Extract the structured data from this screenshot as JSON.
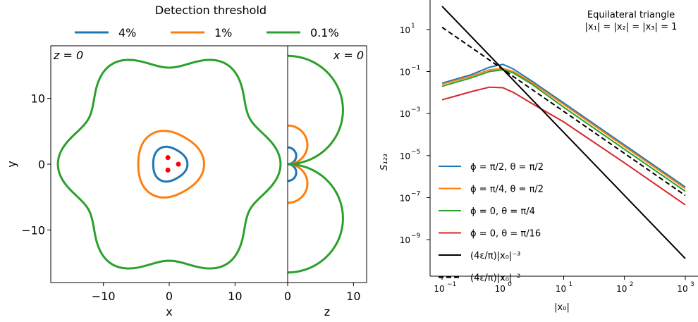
{
  "legend": {
    "title": "Detection threshold",
    "entries": [
      {
        "label": "4%",
        "color": "#1f77b4"
      },
      {
        "label": "1%",
        "color": "#ff7f0e"
      },
      {
        "label": "0.1%",
        "color": "#2ca02c"
      }
    ]
  },
  "chart_data": [
    {
      "type": "line",
      "panel": "z=0 slice",
      "title": "",
      "corner_label": "z = 0",
      "xlabel": "x",
      "ylabel": "y",
      "xlim": [
        -18,
        18
      ],
      "ylim": [
        -18,
        18
      ],
      "xticks": [
        {
          "v": -10,
          "label": "−10"
        },
        {
          "v": 0,
          "label": "0"
        },
        {
          "v": 10,
          "label": "10"
        }
      ],
      "yticks": [
        {
          "v": -10,
          "label": "−10"
        },
        {
          "v": 0,
          "label": "0"
        },
        {
          "v": 10,
          "label": "10"
        }
      ],
      "series": [
        {
          "name": "4%",
          "color": "#1f77b4",
          "base_radius": 2.6,
          "lobe_amplitude": 0.55,
          "lobes": 3
        },
        {
          "name": "1%",
          "color": "#ff7f0e",
          "base_radius": 5.0,
          "lobe_amplitude": 0.5,
          "lobes": 3
        },
        {
          "name": "0.1%",
          "color": "#2ca02c",
          "base_radius": 15.8,
          "lobe_amplitude": 0.8,
          "lobes": 6
        }
      ],
      "points": [
        {
          "x": 1.4,
          "y": 0.0
        },
        {
          "x": -0.2,
          "y": 1.0
        },
        {
          "x": -0.2,
          "y": -0.9
        }
      ],
      "point_color": "#ff0000"
    },
    {
      "type": "line",
      "panel": "x=0 slice",
      "corner_label": "x = 0",
      "xlabel": "z",
      "xlim": [
        0,
        12
      ],
      "ylim": [
        -18,
        18
      ],
      "xticks": [
        {
          "v": 0,
          "label": "0"
        },
        {
          "v": 10,
          "label": "10"
        }
      ],
      "series": [
        {
          "name": "4%",
          "color": "#1f77b4",
          "lobe_radius": 1.3
        },
        {
          "name": "1%",
          "color": "#ff7f0e",
          "lobe_radius": 3.0
        },
        {
          "name": "0.1%",
          "color": "#2ca02c",
          "lobe_radius": 8.4
        }
      ]
    },
    {
      "type": "line",
      "scale": "log-log",
      "annotation": [
        "Equilateral triangle",
        "|x₁| = |x₂| = |x₃| = 1"
      ],
      "xlabel": "|x₀|",
      "ylabel": "S₁₂₃",
      "xlim": [
        0.1,
        1000
      ],
      "ylim": [
        1e-10,
        1000
      ],
      "xticks": [
        {
          "e": -1,
          "label": "10"
        },
        {
          "e": 0,
          "label": "10"
        },
        {
          "e": 1,
          "label": "10"
        },
        {
          "e": 2,
          "label": "10"
        },
        {
          "e": 3,
          "label": "10"
        }
      ],
      "xtick_exponents": [
        "−1",
        "0",
        "1",
        "2",
        "3"
      ],
      "yticks": [
        1,
        -1,
        -3,
        -5,
        -7,
        -9
      ],
      "ytick_exponents": [
        "1",
        "−1",
        "−3",
        "−5",
        "−7",
        "−9"
      ],
      "series": [
        {
          "name": "ϕ = π/2, θ = π/2",
          "color": "#1f77b4",
          "x": [
            0.1,
            0.3,
            0.6,
            1.0,
            1.5,
            3,
            10,
            100,
            1000
          ],
          "y": [
            0.028,
            0.07,
            0.16,
            0.22,
            0.13,
            0.035,
            0.0032,
            3.2e-05,
            3.2e-07
          ]
        },
        {
          "name": "ϕ = π/4, θ = π/2",
          "color": "#ff7f0e",
          "x": [
            0.1,
            0.3,
            0.6,
            1.0,
            1.5,
            3,
            10,
            100,
            1000
          ],
          "y": [
            0.025,
            0.06,
            0.12,
            0.14,
            0.1,
            0.03,
            0.0027,
            2.7e-05,
            2.7e-07
          ]
        },
        {
          "name": "ϕ = 0, θ = π/4",
          "color": "#2ca02c",
          "x": [
            0.1,
            0.3,
            0.6,
            1.0,
            1.5,
            3,
            10,
            100,
            1000
          ],
          "y": [
            0.02,
            0.05,
            0.1,
            0.12,
            0.085,
            0.025,
            0.002,
            2e-05,
            2e-07
          ]
        },
        {
          "name": "ϕ = 0, θ = π/16",
          "color": "#d62728",
          "x": [
            0.1,
            0.3,
            0.6,
            1.0,
            1.5,
            3,
            10,
            100,
            1000
          ],
          "y": [
            0.0045,
            0.011,
            0.018,
            0.017,
            0.01,
            0.003,
            0.0004,
            4.5e-06,
            4.5e-08
          ]
        },
        {
          "name": "(4ε/π)|x₀|⁻³",
          "color": "#000000",
          "dash": "solid",
          "x": [
            0.1,
            1000
          ],
          "y": [
            127,
            1.27e-10
          ]
        },
        {
          "name": "(4ε/π)|x₀|⁻²",
          "color": "#000000",
          "dash": "dashed",
          "x": [
            0.1,
            1000
          ],
          "y": [
            12.7,
            1.27e-07
          ]
        }
      ]
    }
  ]
}
